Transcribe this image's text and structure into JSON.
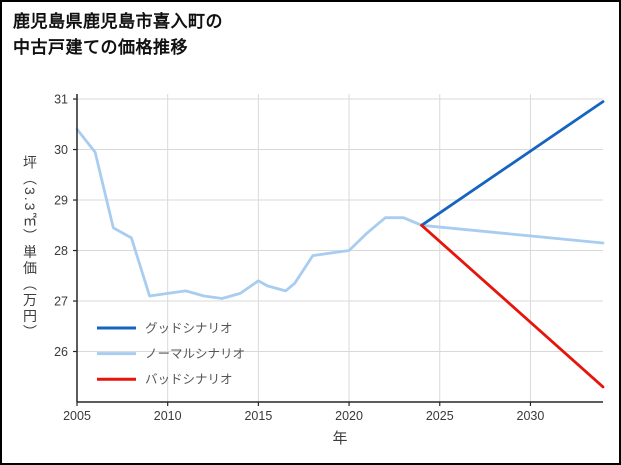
{
  "page": {
    "background": "#ffffff",
    "border_color": "#000000"
  },
  "title": {
    "line1": "鹿児島県鹿児島市喜入町の",
    "line2": "中古戸建ての価格推移"
  },
  "chart_data": {
    "type": "line",
    "title": "鹿児島県鹿児島市喜入町の中古戸建ての価格推移",
    "xlabel": "年",
    "ylabel": "坪（3.3㎡）単価（万円）",
    "xlim": [
      2005,
      2034
    ],
    "ylim": [
      25.0,
      31.1
    ],
    "x_ticks": [
      2005,
      2010,
      2015,
      2020,
      2025,
      2030
    ],
    "y_ticks": [
      26,
      27,
      28,
      29,
      30,
      31
    ],
    "grid": true,
    "legend_position": "lower left",
    "colors": {
      "good": "#1565c0",
      "normal": "#a8cdf0",
      "bad": "#e8140c",
      "grid": "#d9d9d9",
      "axis": "#262626",
      "tick_label": "#3a3a3a",
      "legend_label": "#555555"
    },
    "series": [
      {
        "name": "ノーマルシナリオ",
        "color_key": "normal",
        "x": [
          2005,
          2006,
          2007,
          2008,
          2009,
          2010,
          2011,
          2012,
          2013,
          2014,
          2015,
          2015.5,
          2016.5,
          2017,
          2018,
          2019,
          2020,
          2021,
          2022,
          2023,
          2024,
          2034
        ],
        "y": [
          30.4,
          29.95,
          28.45,
          28.25,
          27.1,
          27.15,
          27.2,
          27.1,
          27.05,
          27.15,
          27.4,
          27.3,
          27.2,
          27.35,
          27.9,
          27.95,
          28.0,
          28.35,
          28.65,
          28.65,
          28.5,
          28.15
        ]
      },
      {
        "name": "グッドシナリオ",
        "color_key": "good",
        "x": [
          2024,
          2034
        ],
        "y": [
          28.5,
          30.95
        ]
      },
      {
        "name": "バッドシナリオ",
        "color_key": "bad",
        "x": [
          2024,
          2034
        ],
        "y": [
          28.5,
          25.3
        ]
      }
    ],
    "legend": [
      {
        "label": "グッドシナリオ",
        "color_key": "good"
      },
      {
        "label": "ノーマルシナリオ",
        "color_key": "normal"
      },
      {
        "label": "バッドシナリオ",
        "color_key": "bad"
      }
    ]
  }
}
